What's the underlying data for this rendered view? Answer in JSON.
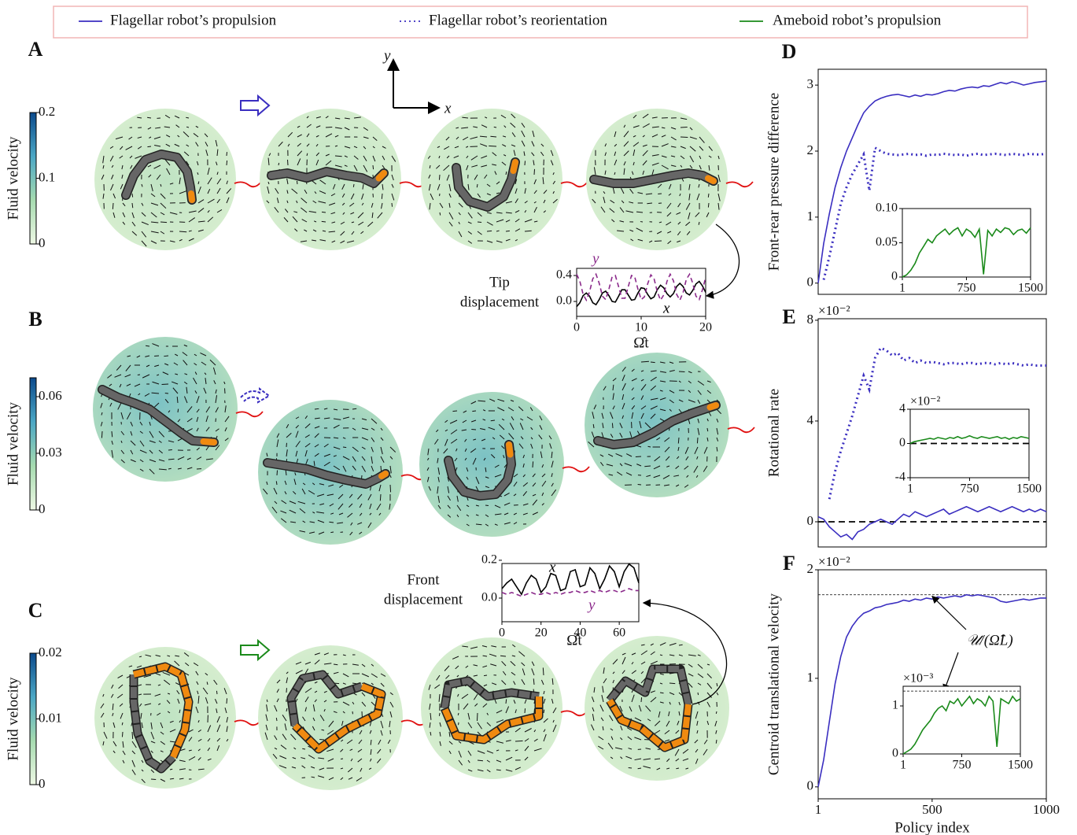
{
  "legend": [
    {
      "label": "Flagellar robot’s propulsion",
      "color": "#3a2ec0",
      "style": "solid"
    },
    {
      "label": "Flagellar robot’s reorientation",
      "color": "#3a2ec0",
      "style": "dotted"
    },
    {
      "label": "Ameboid robot’s propulsion",
      "color": "#1a8a1a",
      "style": "solid"
    }
  ],
  "frame_axes": {
    "x_label": "x",
    "y_label": "y"
  },
  "chart_data": [
    {
      "type": "colorbar",
      "panel": "A",
      "ylabel": "Fluid velocity",
      "ylim": [
        0,
        0.2
      ],
      "yticks": [
        0,
        0.1,
        0.2
      ],
      "colors": [
        "#eef8e4",
        "#a6dbb0",
        "#4ba7c5",
        "#0b4a8c"
      ]
    },
    {
      "type": "colorbar",
      "panel": "B",
      "ylabel": "Fluid velocity",
      "ylim": [
        0,
        0.07
      ],
      "yticks": [
        0,
        0.03,
        0.06
      ],
      "colors": [
        "#eef8e4",
        "#a6dbb0",
        "#4ba7c5",
        "#0b4a8c"
      ]
    },
    {
      "type": "colorbar",
      "panel": "C",
      "ylabel": "Fluid velocity",
      "ylim": [
        0,
        0.02
      ],
      "yticks": [
        0,
        0.01,
        0.02
      ],
      "colors": [
        "#eef8e4",
        "#a6dbb0",
        "#4ba7c5",
        "#0b4a8c"
      ]
    },
    {
      "type": "line",
      "annotation": [
        "Tip",
        "displacement"
      ],
      "xlabel": "Ω̂t",
      "xlim": [
        0,
        20
      ],
      "xticks": [
        0,
        10,
        20
      ],
      "ylim": [
        -0.23,
        0.51
      ],
      "yticks": [
        {
          "value": 0,
          "label": "0.0"
        },
        0.4
      ],
      "x": [
        0,
        0.5,
        1,
        1.5,
        2,
        2.5,
        3,
        3.5,
        4,
        4.5,
        5,
        5.5,
        6,
        6.5,
        7,
        7.5,
        8,
        8.5,
        9,
        9.5,
        10,
        10.5,
        11,
        11.5,
        12,
        12.5,
        13,
        13.5,
        14,
        14.5,
        15,
        15.5,
        16,
        16.5,
        17,
        17.5,
        18,
        18.5,
        19,
        19.5,
        20
      ],
      "series": [
        {
          "name": "x",
          "color": "#000000",
          "style": "solid",
          "values": [
            -0.08,
            -0.02,
            0.09,
            0.13,
            0.08,
            -0.02,
            -0.05,
            0.03,
            0.13,
            0.16,
            0.09,
            0.0,
            -0.01,
            0.08,
            0.18,
            0.18,
            0.1,
            0.02,
            0.03,
            0.13,
            0.21,
            0.2,
            0.11,
            0.04,
            0.07,
            0.18,
            0.25,
            0.21,
            0.12,
            0.07,
            0.12,
            0.23,
            0.28,
            0.23,
            0.13,
            0.1,
            0.17,
            0.27,
            0.31,
            0.24,
            0.14
          ]
        },
        {
          "name": "y",
          "color": "#8b2a8b",
          "style": "dashed",
          "values": [
            0.42,
            0.31,
            0.11,
            0.02,
            0.15,
            0.35,
            0.42,
            0.28,
            0.08,
            0.03,
            0.19,
            0.38,
            0.4,
            0.23,
            0.05,
            0.05,
            0.23,
            0.4,
            0.38,
            0.19,
            0.03,
            0.07,
            0.27,
            0.41,
            0.35,
            0.15,
            0.02,
            0.1,
            0.31,
            0.42,
            0.32,
            0.11,
            0.02,
            0.14,
            0.34,
            0.42,
            0.28,
            0.08,
            0.03,
            0.18,
            0.37
          ]
        }
      ]
    },
    {
      "type": "line",
      "annotation": [
        "Front",
        "displacement"
      ],
      "xlabel": "Ω̂t",
      "xlim": [
        0,
        70
      ],
      "xticks": [
        0,
        20,
        40,
        60
      ],
      "ylim": [
        -0.125,
        0.183
      ],
      "yticks": [
        {
          "value": 0,
          "label": "0.0"
        },
        0.2
      ],
      "x": [
        0,
        2.5,
        5,
        7.5,
        10,
        12.5,
        15,
        17.5,
        20,
        22.5,
        25,
        27.5,
        30,
        32.5,
        35,
        37.5,
        40,
        42.5,
        45,
        47.5,
        50,
        52.5,
        55,
        57.5,
        60,
        62.5,
        65,
        67.5,
        70
      ],
      "series": [
        {
          "name": "x",
          "color": "#000000",
          "style": "solid",
          "values": [
            0.05,
            0.08,
            0.1,
            0.06,
            0.02,
            0.08,
            0.12,
            0.1,
            0.03,
            0.06,
            0.13,
            0.12,
            0.04,
            0.05,
            0.14,
            0.15,
            0.06,
            0.07,
            0.16,
            0.13,
            0.05,
            0.1,
            0.17,
            0.14,
            0.06,
            0.14,
            0.18,
            0.16,
            0.08
          ]
        },
        {
          "name": "y",
          "color": "#8b2a8b",
          "style": "dashed",
          "values": [
            0.03,
            0.02,
            0.03,
            0.02,
            0.01,
            0.02,
            0.03,
            0.02,
            0.02,
            0.03,
            0.02,
            0.03,
            0.02,
            0.03,
            0.03,
            0.04,
            0.03,
            0.03,
            0.04,
            0.03,
            0.04,
            0.03,
            0.04,
            0.04,
            0.03,
            0.04,
            0.05,
            0.04,
            0.04
          ]
        }
      ]
    },
    {
      "type": "line",
      "panel": "D",
      "ylabel": "Front-rear pressure difference",
      "xlim": [
        1,
        1000
      ],
      "ylim": [
        -0.17,
        3.24
      ],
      "yticks": [
        0,
        1,
        2,
        3
      ],
      "x": [
        1,
        25,
        50,
        75,
        100,
        125,
        150,
        175,
        200,
        225,
        250,
        275,
        300,
        325,
        350,
        375,
        400,
        425,
        450,
        475,
        500,
        525,
        550,
        575,
        600,
        625,
        650,
        675,
        700,
        725,
        750,
        775,
        800,
        825,
        850,
        875,
        900,
        925,
        950,
        975,
        1000
      ],
      "series": [
        {
          "color": "#3a2ec0",
          "style": "solid",
          "values": [
            0,
            0.6,
            1.05,
            1.45,
            1.75,
            2.0,
            2.2,
            2.4,
            2.58,
            2.68,
            2.76,
            2.8,
            2.83,
            2.85,
            2.86,
            2.84,
            2.82,
            2.85,
            2.83,
            2.86,
            2.85,
            2.87,
            2.9,
            2.92,
            2.91,
            2.94,
            2.96,
            2.97,
            2.96,
            2.99,
            2.98,
            3.01,
            3.04,
            3.02,
            3.05,
            3.03,
            3.0,
            3.02,
            3.04,
            3.05,
            3.06
          ]
        },
        {
          "color": "#3a2ec0",
          "style": "dotted",
          "values": [
            null,
            0.05,
            0.4,
            0.8,
            1.2,
            1.45,
            1.65,
            1.8,
            1.95,
            1.4,
            2.05,
            2.0,
            1.96,
            1.95,
            1.94,
            1.95,
            1.96,
            1.94,
            1.95,
            1.93,
            1.95,
            1.94,
            1.96,
            1.95,
            1.94,
            1.95,
            1.93,
            1.95,
            1.96,
            1.94,
            1.95,
            1.96,
            1.95,
            1.94,
            1.96,
            1.95,
            1.94,
            1.96,
            1.95,
            1.95,
            1.96
          ]
        }
      ]
    },
    {
      "type": "line",
      "xlim": [
        1,
        1500
      ],
      "xticks": [
        1,
        750,
        1500
      ],
      "ylim": [
        0,
        0.1
      ],
      "yticks": [
        0,
        0.05,
        {
          "value": 0.1,
          "label": "0.10"
        }
      ],
      "x": [
        1,
        50,
        100,
        150,
        200,
        250,
        300,
        350,
        400,
        450,
        500,
        550,
        600,
        650,
        700,
        750,
        800,
        850,
        900,
        950,
        1000,
        1050,
        1100,
        1150,
        1200,
        1250,
        1300,
        1350,
        1400,
        1450,
        1500
      ],
      "series": [
        {
          "color": "#1a8a1a",
          "style": "solid",
          "values": [
            0,
            0.003,
            0.01,
            0.02,
            0.035,
            0.045,
            0.055,
            0.05,
            0.06,
            0.065,
            0.07,
            0.062,
            0.068,
            0.072,
            0.06,
            0.07,
            0.066,
            0.058,
            0.07,
            0.004,
            0.068,
            0.06,
            0.07,
            0.065,
            0.072,
            0.07,
            0.062,
            0.068,
            0.07,
            0.064,
            0.072
          ]
        }
      ]
    },
    {
      "type": "line",
      "panel": "E",
      "ylabel": "Rotational rate",
      "offset_label": "×10⁻²",
      "hline": 0,
      "xlim": [
        1,
        1000
      ],
      "ylim": [
        -1,
        8.06
      ],
      "yticks": [
        0,
        4,
        8
      ],
      "x": [
        1,
        25,
        50,
        75,
        100,
        125,
        150,
        175,
        200,
        225,
        250,
        275,
        300,
        325,
        350,
        375,
        400,
        425,
        450,
        475,
        500,
        525,
        550,
        575,
        600,
        625,
        650,
        675,
        700,
        725,
        750,
        775,
        800,
        825,
        850,
        875,
        900,
        925,
        950,
        975,
        1000
      ],
      "series": [
        {
          "color": "#3a2ec0",
          "style": "solid",
          "values": [
            0.2,
            0.1,
            -0.2,
            -0.4,
            -0.6,
            -0.5,
            -0.7,
            -0.4,
            -0.3,
            -0.1,
            0.0,
            0.1,
            0.0,
            -0.1,
            0.1,
            0.3,
            0.2,
            0.4,
            0.3,
            0.2,
            0.3,
            0.4,
            0.5,
            0.3,
            0.4,
            0.5,
            0.6,
            0.5,
            0.4,
            0.5,
            0.6,
            0.5,
            0.4,
            0.5,
            0.6,
            0.5,
            0.4,
            0.5,
            0.4,
            0.5,
            0.4
          ]
        },
        {
          "color": "#3a2ec0",
          "style": "dotted",
          "values": [
            null,
            null,
            0.9,
            2.0,
            2.8,
            3.5,
            4.2,
            5.0,
            5.8,
            5.25,
            6.5,
            6.9,
            6.8,
            6.6,
            6.7,
            6.4,
            6.5,
            6.3,
            6.4,
            6.3,
            6.35,
            6.3,
            6.25,
            6.3,
            6.3,
            6.25,
            6.3,
            6.3,
            6.25,
            6.3,
            6.3,
            6.25,
            6.3,
            6.25,
            6.3,
            6.25,
            6.2,
            6.25,
            6.2,
            6.2,
            6.2
          ]
        }
      ]
    },
    {
      "type": "line",
      "offset_label": "×10⁻²",
      "hline": 0,
      "xlim": [
        1,
        1500
      ],
      "xticks": [
        1,
        750,
        1500
      ],
      "ylim": [
        -4,
        4
      ],
      "yticks": [
        -4,
        0,
        4
      ],
      "x": [
        1,
        50,
        100,
        150,
        200,
        250,
        300,
        350,
        400,
        450,
        500,
        550,
        600,
        650,
        700,
        750,
        800,
        850,
        900,
        950,
        1000,
        1050,
        1100,
        1150,
        1200,
        1250,
        1300,
        1350,
        1400,
        1450,
        1500
      ],
      "series": [
        {
          "color": "#1a8a1a",
          "style": "solid",
          "values": [
            0,
            0.2,
            0.3,
            0.4,
            0.5,
            0.6,
            0.5,
            0.7,
            0.6,
            0.5,
            0.7,
            0.6,
            0.8,
            0.6,
            0.7,
            0.9,
            0.7,
            0.6,
            0.8,
            0.7,
            0.6,
            0.7,
            0.8,
            0.6,
            0.7,
            0.5,
            0.7,
            0.6,
            0.8,
            0.7,
            0.6
          ]
        }
      ]
    },
    {
      "type": "line",
      "panel": "F",
      "ylabel": "Centroid translational velocity",
      "xlabel": "Policy index",
      "offset_label": "×10⁻²",
      "hline": 1.77,
      "annotation": "𝒰/(Ω̂L)",
      "xlim": [
        1,
        1000
      ],
      "xticks": [
        1,
        500,
        1000
      ],
      "ylim": [
        -0.11,
        2.0
      ],
      "yticks": [
        0,
        1,
        2
      ],
      "x": [
        1,
        25,
        50,
        75,
        100,
        125,
        150,
        175,
        200,
        225,
        250,
        275,
        300,
        325,
        350,
        375,
        400,
        425,
        450,
        475,
        500,
        525,
        550,
        575,
        600,
        625,
        650,
        675,
        700,
        725,
        750,
        775,
        800,
        825,
        850,
        875,
        900,
        925,
        950,
        975,
        1000
      ],
      "series": [
        {
          "color": "#3a2ec0",
          "style": "solid",
          "values": [
            0,
            0.25,
            0.6,
            0.95,
            1.2,
            1.38,
            1.48,
            1.55,
            1.6,
            1.62,
            1.65,
            1.66,
            1.68,
            1.69,
            1.7,
            1.72,
            1.71,
            1.73,
            1.72,
            1.74,
            1.73,
            1.75,
            1.74,
            1.75,
            1.76,
            1.75,
            1.77,
            1.76,
            1.77,
            1.76,
            1.75,
            1.74,
            1.71,
            1.7,
            1.71,
            1.72,
            1.73,
            1.72,
            1.73,
            1.74,
            1.74
          ]
        }
      ]
    },
    {
      "type": "line",
      "offset_label": "×10⁻³",
      "hline": 1.31,
      "xlim": [
        1,
        1500
      ],
      "xticks": [
        1,
        750,
        1500
      ],
      "ylim": [
        0,
        1.41
      ],
      "yticks": [
        0,
        1
      ],
      "x": [
        1,
        50,
        100,
        150,
        200,
        250,
        300,
        350,
        400,
        450,
        500,
        550,
        600,
        650,
        700,
        750,
        800,
        850,
        900,
        950,
        1000,
        1050,
        1100,
        1150,
        1200,
        1250,
        1300,
        1350,
        1400,
        1450,
        1500
      ],
      "series": [
        {
          "color": "#1a8a1a",
          "style": "solid",
          "values": [
            0,
            0.05,
            0.1,
            0.2,
            0.35,
            0.5,
            0.6,
            0.7,
            0.85,
            0.95,
            1.0,
            0.9,
            1.1,
            1.05,
            1.15,
            1.0,
            1.1,
            1.2,
            1.05,
            1.15,
            1.1,
            1.0,
            1.2,
            1.1,
            0.15,
            1.15,
            1.1,
            1.05,
            1.2,
            1.1,
            1.15
          ]
        }
      ]
    }
  ]
}
